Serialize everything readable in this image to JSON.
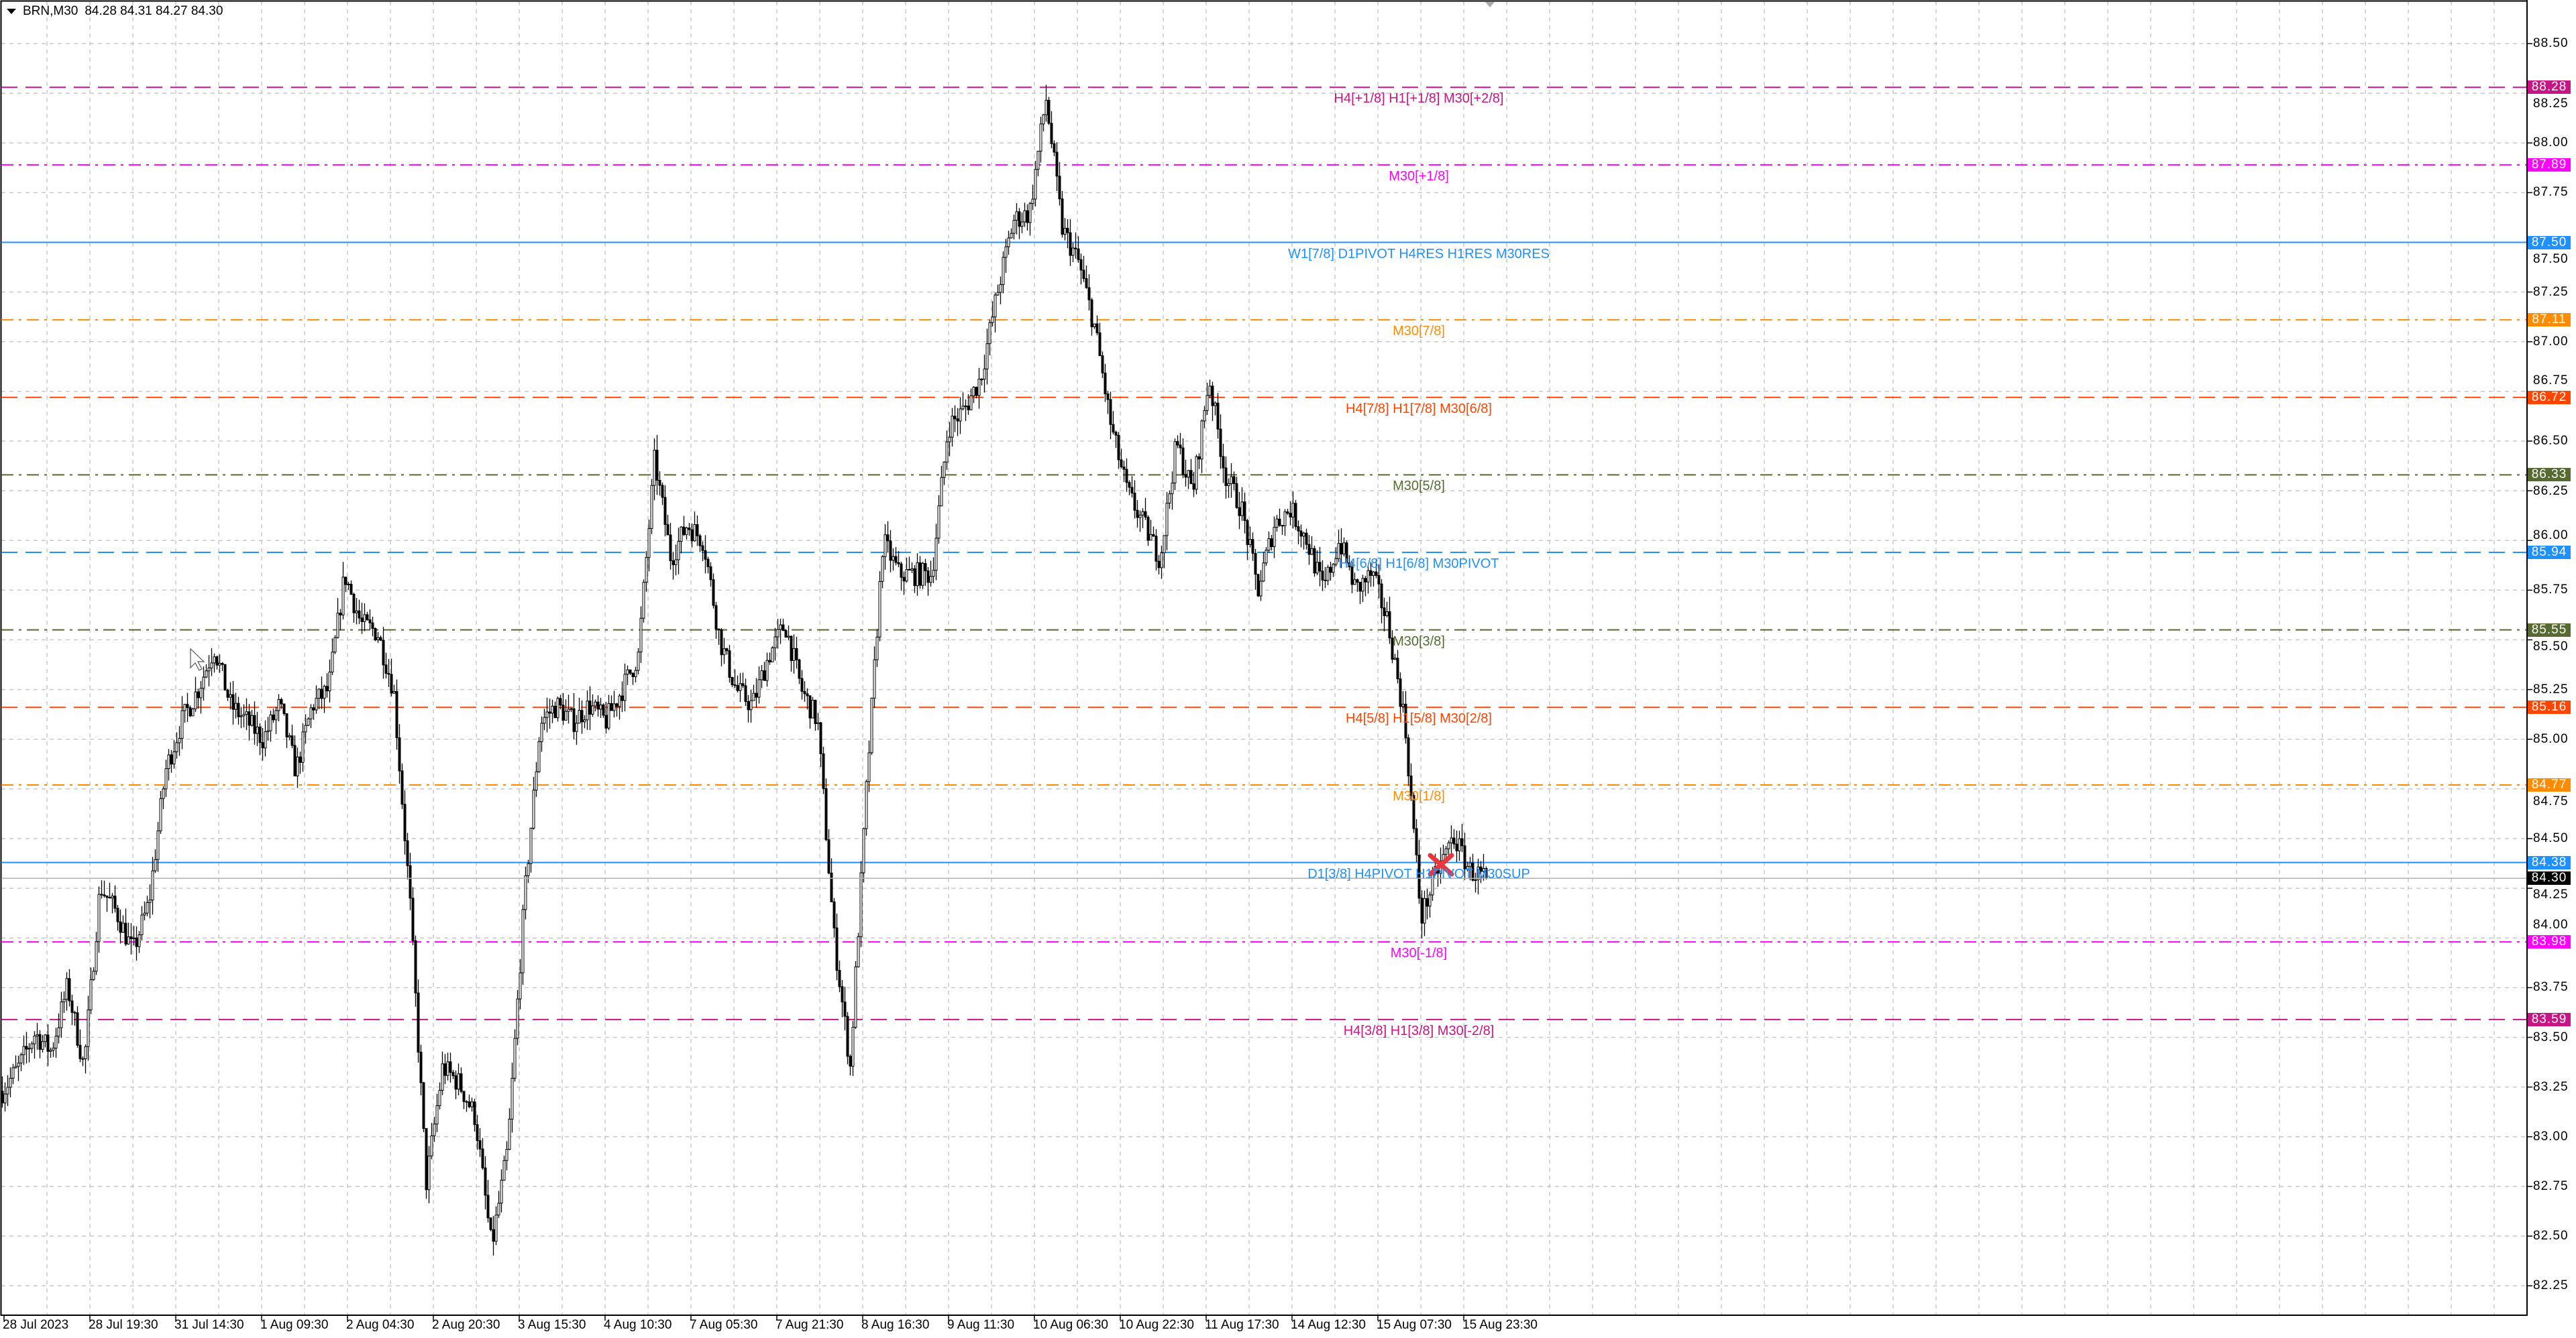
{
  "header": {
    "symbol": "BRN,M30",
    "ohlc": "84.28 84.31 84.27 84.30"
  },
  "colors": {
    "candle": "#000000",
    "grid": "#c0c0c0",
    "background": "#ffffff",
    "marker": "#e8383d"
  },
  "price_axis": {
    "ticks": [
      "88.50",
      "88.25",
      "88.00",
      "87.75",
      "87.50",
      "87.25",
      "87.00",
      "86.75",
      "86.50",
      "86.25",
      "86.00",
      "85.75",
      "85.50",
      "85.25",
      "85.00",
      "84.75",
      "84.50",
      "84.25",
      "84.00",
      "83.75",
      "83.50",
      "83.25",
      "83.00",
      "82.75",
      "82.50",
      "82.25"
    ],
    "current_price": "84.30"
  },
  "time_axis": [
    "28 Jul 2023",
    "28 Jul 19:30",
    "31 Jul 14:30",
    "1 Aug 09:30",
    "2 Aug 04:30",
    "2 Aug 20:30",
    "3 Aug 15:30",
    "4 Aug 10:30",
    "7 Aug 05:30",
    "7 Aug 21:30",
    "8 Aug 16:30",
    "9 Aug 11:30",
    "10 Aug 06:30",
    "10 Aug 22:30",
    "11 Aug 17:30",
    "14 Aug 12:30",
    "15 Aug 07:30",
    "15 Aug 23:30"
  ],
  "levels": [
    {
      "price": "88.28",
      "label": "H4[+1/8] H1[+1/8] M30[+2/8]",
      "color": "#c71585",
      "style": "dashed"
    },
    {
      "price": "87.89",
      "label": "M30[+1/8]",
      "color": "#ff00ff",
      "style": "dashdot"
    },
    {
      "price": "87.50",
      "label": "W1[7/8] D1PIVOT H4RES H1RES M30RES",
      "color": "#1e90ff",
      "style": "solid"
    },
    {
      "price": "87.11",
      "label": "M30[7/8]",
      "color": "#ff8c00",
      "style": "dashdot"
    },
    {
      "price": "86.72",
      "label": "H4[7/8] H1[7/8] M30[6/8]",
      "color": "#ff4500",
      "style": "dashed"
    },
    {
      "price": "86.33",
      "label": "M30[5/8]",
      "color": "#556b2f",
      "style": "dashdot"
    },
    {
      "price": "85.94",
      "label": "H4[6/8] H1[6/8] M30PIVOT",
      "color": "#1e90ff",
      "style": "dashed"
    },
    {
      "price": "85.55",
      "label": "M30[3/8]",
      "color": "#556b2f",
      "style": "dashdot"
    },
    {
      "price": "85.16",
      "label": "H4[5/8] H1[5/8] M30[2/8]",
      "color": "#ff4500",
      "style": "dashed"
    },
    {
      "price": "84.77",
      "label": "M30[1/8]",
      "color": "#ff8c00",
      "style": "dashdot"
    },
    {
      "price": "84.38",
      "label": "D1[3/8] H4PIVOT H1PIVOT M30SUP",
      "color": "#1e90ff",
      "style": "solid"
    },
    {
      "price": "83.98",
      "label": "M30[-1/8]",
      "color": "#ff00ff",
      "style": "dashdot"
    },
    {
      "price": "83.59",
      "label": "H4[3/8] H1[3/8] M30[-2/8]",
      "color": "#c71585",
      "style": "dashed"
    }
  ],
  "chart_data": {
    "type": "candlestick",
    "symbol": "BRN",
    "timeframe": "M30",
    "ylim": [
      82.25,
      88.5
    ],
    "grid": true,
    "approx_close_path": [
      83.23,
      83.35,
      83.52,
      83.43,
      83.76,
      83.35,
      84.26,
      84.13,
      83.93,
      84.18,
      84.84,
      85.09,
      85.25,
      85.46,
      85.17,
      85.09,
      85.0,
      85.17,
      84.84,
      85.17,
      85.25,
      85.83,
      85.58,
      85.54,
      85.25,
      84.18,
      82.77,
      83.35,
      83.27,
      83.1,
      82.44,
      82.94,
      84.18,
      85.09,
      85.17,
      85.09,
      85.17,
      85.09,
      85.25,
      85.42,
      86.41,
      85.91,
      86.08,
      86.0,
      85.5,
      85.25,
      85.17,
      85.42,
      85.58,
      85.25,
      85.09,
      84.01,
      83.35,
      84.76,
      86.0,
      85.83,
      85.83,
      85.83,
      86.57,
      86.66,
      86.82,
      87.24,
      87.61,
      87.65,
      88.23,
      87.57,
      87.4,
      87.07,
      86.57,
      86.24,
      86.08,
      85.91,
      86.49,
      86.24,
      86.82,
      86.33,
      86.16,
      85.75,
      86.08,
      86.16,
      86.0,
      85.75,
      86.0,
      85.75,
      85.83,
      85.58,
      85.09,
      84.1,
      84.34,
      84.51,
      84.34,
      84.3
    ],
    "last_bar": {
      "open": 84.28,
      "high": 84.31,
      "low": 84.27,
      "close": 84.3
    }
  }
}
